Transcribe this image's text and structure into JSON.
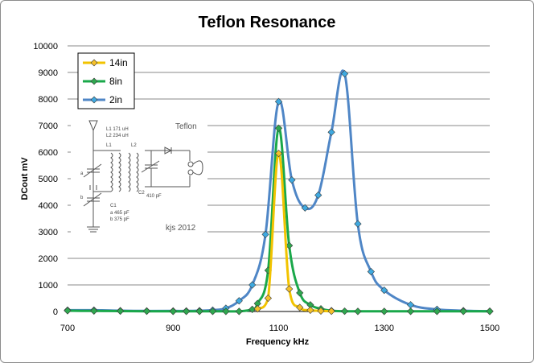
{
  "chart_data": {
    "type": "line",
    "title": "Teflon Resonance",
    "xlabel": "Frequency kHz",
    "ylabel": "DCout mV",
    "xlim": [
      700,
      1500
    ],
    "ylim": [
      0,
      10000
    ],
    "xticks": [
      700,
      900,
      1100,
      1300,
      1500
    ],
    "yticks": [
      0,
      1000,
      2000,
      3000,
      4000,
      5000,
      6000,
      7000,
      8000,
      9000,
      10000
    ],
    "grid": "horizontal",
    "legend_position": "top-left",
    "series": [
      {
        "name": "14in",
        "color": "#f2c300",
        "marker_color": "#f5c02a",
        "x": [
          1060,
          1080,
          1100,
          1120,
          1140,
          1160,
          1180,
          1200
        ],
        "y": [
          100,
          500,
          5950,
          850,
          150,
          50,
          20,
          10
        ]
      },
      {
        "name": "8in",
        "color": "#1aa84a",
        "marker_color": "#2fa84f",
        "x": [
          700,
          750,
          800,
          850,
          900,
          925,
          950,
          975,
          1000,
          1025,
          1050,
          1060,
          1080,
          1100,
          1120,
          1140,
          1160,
          1180,
          1200,
          1225,
          1250,
          1300,
          1350,
          1400,
          1450,
          1500
        ],
        "y": [
          30,
          20,
          15,
          10,
          5,
          5,
          5,
          5,
          5,
          5,
          80,
          300,
          1550,
          6900,
          2480,
          700,
          250,
          100,
          30,
          10,
          5,
          5,
          5,
          5,
          5,
          5
        ]
      },
      {
        "name": "2in",
        "color": "#4f86c6",
        "marker_color": "#3fa9e0",
        "x": [
          700,
          750,
          800,
          850,
          900,
          925,
          950,
          975,
          1000,
          1025,
          1050,
          1075,
          1100,
          1125,
          1150,
          1175,
          1200,
          1225,
          1250,
          1275,
          1300,
          1350,
          1400,
          1450,
          1500
        ],
        "y": [
          50,
          50,
          30,
          20,
          20,
          20,
          30,
          50,
          120,
          400,
          1000,
          2900,
          7900,
          4950,
          3900,
          4380,
          6750,
          8950,
          3300,
          1500,
          800,
          250,
          80,
          30,
          10
        ]
      }
    ]
  },
  "inset": {
    "label_l1": "L1  171 uH",
    "label_l2": "L2  234 uH",
    "label_l1_short": "L1",
    "label_l2_short": "L2",
    "label_a": "a",
    "label_b": "b",
    "label_c2": "C2",
    "label_c2_value": "410 pF",
    "label_c1": "C1",
    "label_c1_a": "a  465 pF",
    "label_c1_b": "b  375 pF",
    "label_name": "Teflon",
    "label_credit": "kjs 2012"
  }
}
